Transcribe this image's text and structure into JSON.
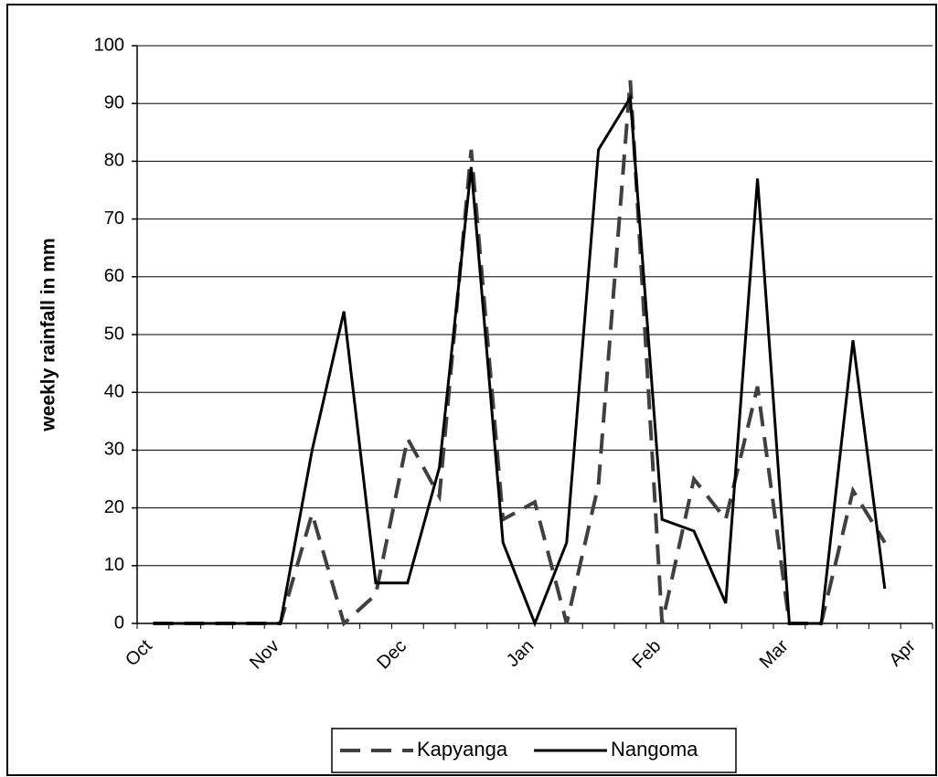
{
  "chart_data": {
    "type": "line",
    "y_label": "weekly rainfall in mm",
    "categories": [
      "Oct",
      null,
      null,
      null,
      "Nov",
      null,
      null,
      null,
      "Dec",
      null,
      null,
      null,
      "Jan",
      null,
      null,
      null,
      "Feb",
      null,
      null,
      null,
      "Mar",
      null,
      null,
      null,
      "Apr"
    ],
    "series": [
      {
        "name": "Kapyanga",
        "color": "#404040",
        "dashed": true,
        "values": [
          0,
          0,
          0,
          0,
          0,
          19,
          0,
          5,
          32,
          22,
          82,
          18,
          21,
          0,
          24,
          94,
          0,
          25,
          18,
          41,
          0,
          0,
          23,
          14,
          null
        ]
      },
      {
        "name": "Nangoma",
        "color": "#000000",
        "dashed": false,
        "values": [
          0,
          0,
          0,
          0,
          0,
          30,
          54,
          7,
          7,
          27,
          79,
          14,
          0,
          14,
          82,
          91,
          18,
          16,
          3.5,
          77,
          0,
          0,
          49,
          6,
          null
        ]
      }
    ],
    "ylim": [
      0,
      100
    ],
    "yticks": [
      0,
      10,
      20,
      30,
      40,
      50,
      60,
      70,
      80,
      90,
      100
    ],
    "grid": true,
    "legend": "bottom"
  }
}
